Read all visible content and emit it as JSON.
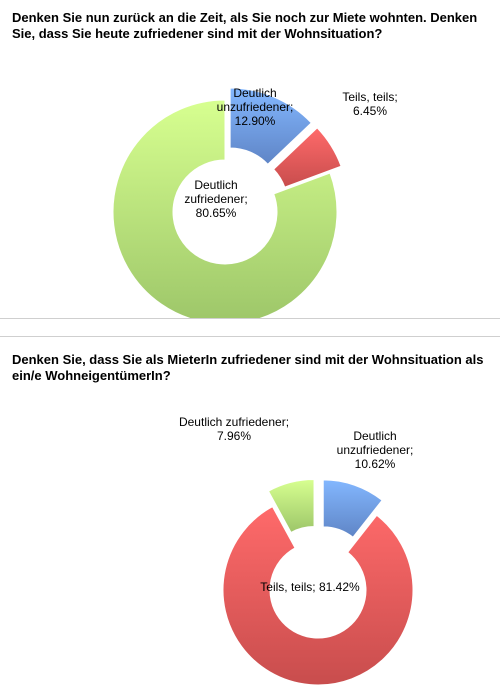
{
  "charts_colors": {
    "blue": "#6f9be6",
    "red": "#e85a5a",
    "green": "#b6e67a"
  },
  "chart_data": [
    {
      "type": "pie",
      "title": "Denken Sie nun zurück an die Zeit, als Sie noch zur Miete wohnten. Denken Sie, dass Sie heute zufriedener sind mit der Wohnsituation?",
      "categories": [
        "Deutlich unzufriedener",
        "Teils, teils",
        "Deutlich zufriedener"
      ],
      "values": [
        12.9,
        6.45,
        80.65
      ],
      "labels": [
        [
          "Deutlich",
          "unzufriedener;",
          "12.90%"
        ],
        [
          "Teils, teils;",
          "6.45%"
        ],
        [
          "Deutlich",
          "zufriedener;",
          "80.65%"
        ]
      ],
      "colors": [
        "blue",
        "red",
        "green"
      ],
      "exploded": [
        true,
        true,
        false
      ],
      "style": "doughnut"
    },
    {
      "type": "pie",
      "title": "Denken Sie, dass Sie als MieterIn zufriedener sind mit der Wohnsituation als ein/e WohneigentümerIn?",
      "categories": [
        "Deutlich unzufriedener",
        "Teils, teils",
        "Deutlich zufriedener"
      ],
      "values": [
        10.62,
        81.42,
        7.96
      ],
      "labels": [
        [
          "Deutlich",
          "unzufriedener;",
          "10.62%"
        ],
        [
          "Teils, teils; 81.42%"
        ],
        [
          "Deutlich zufriedener;",
          "7.96%"
        ]
      ],
      "colors": [
        "blue",
        "red",
        "green"
      ],
      "exploded": [
        true,
        false,
        true
      ],
      "style": "doughnut"
    }
  ]
}
